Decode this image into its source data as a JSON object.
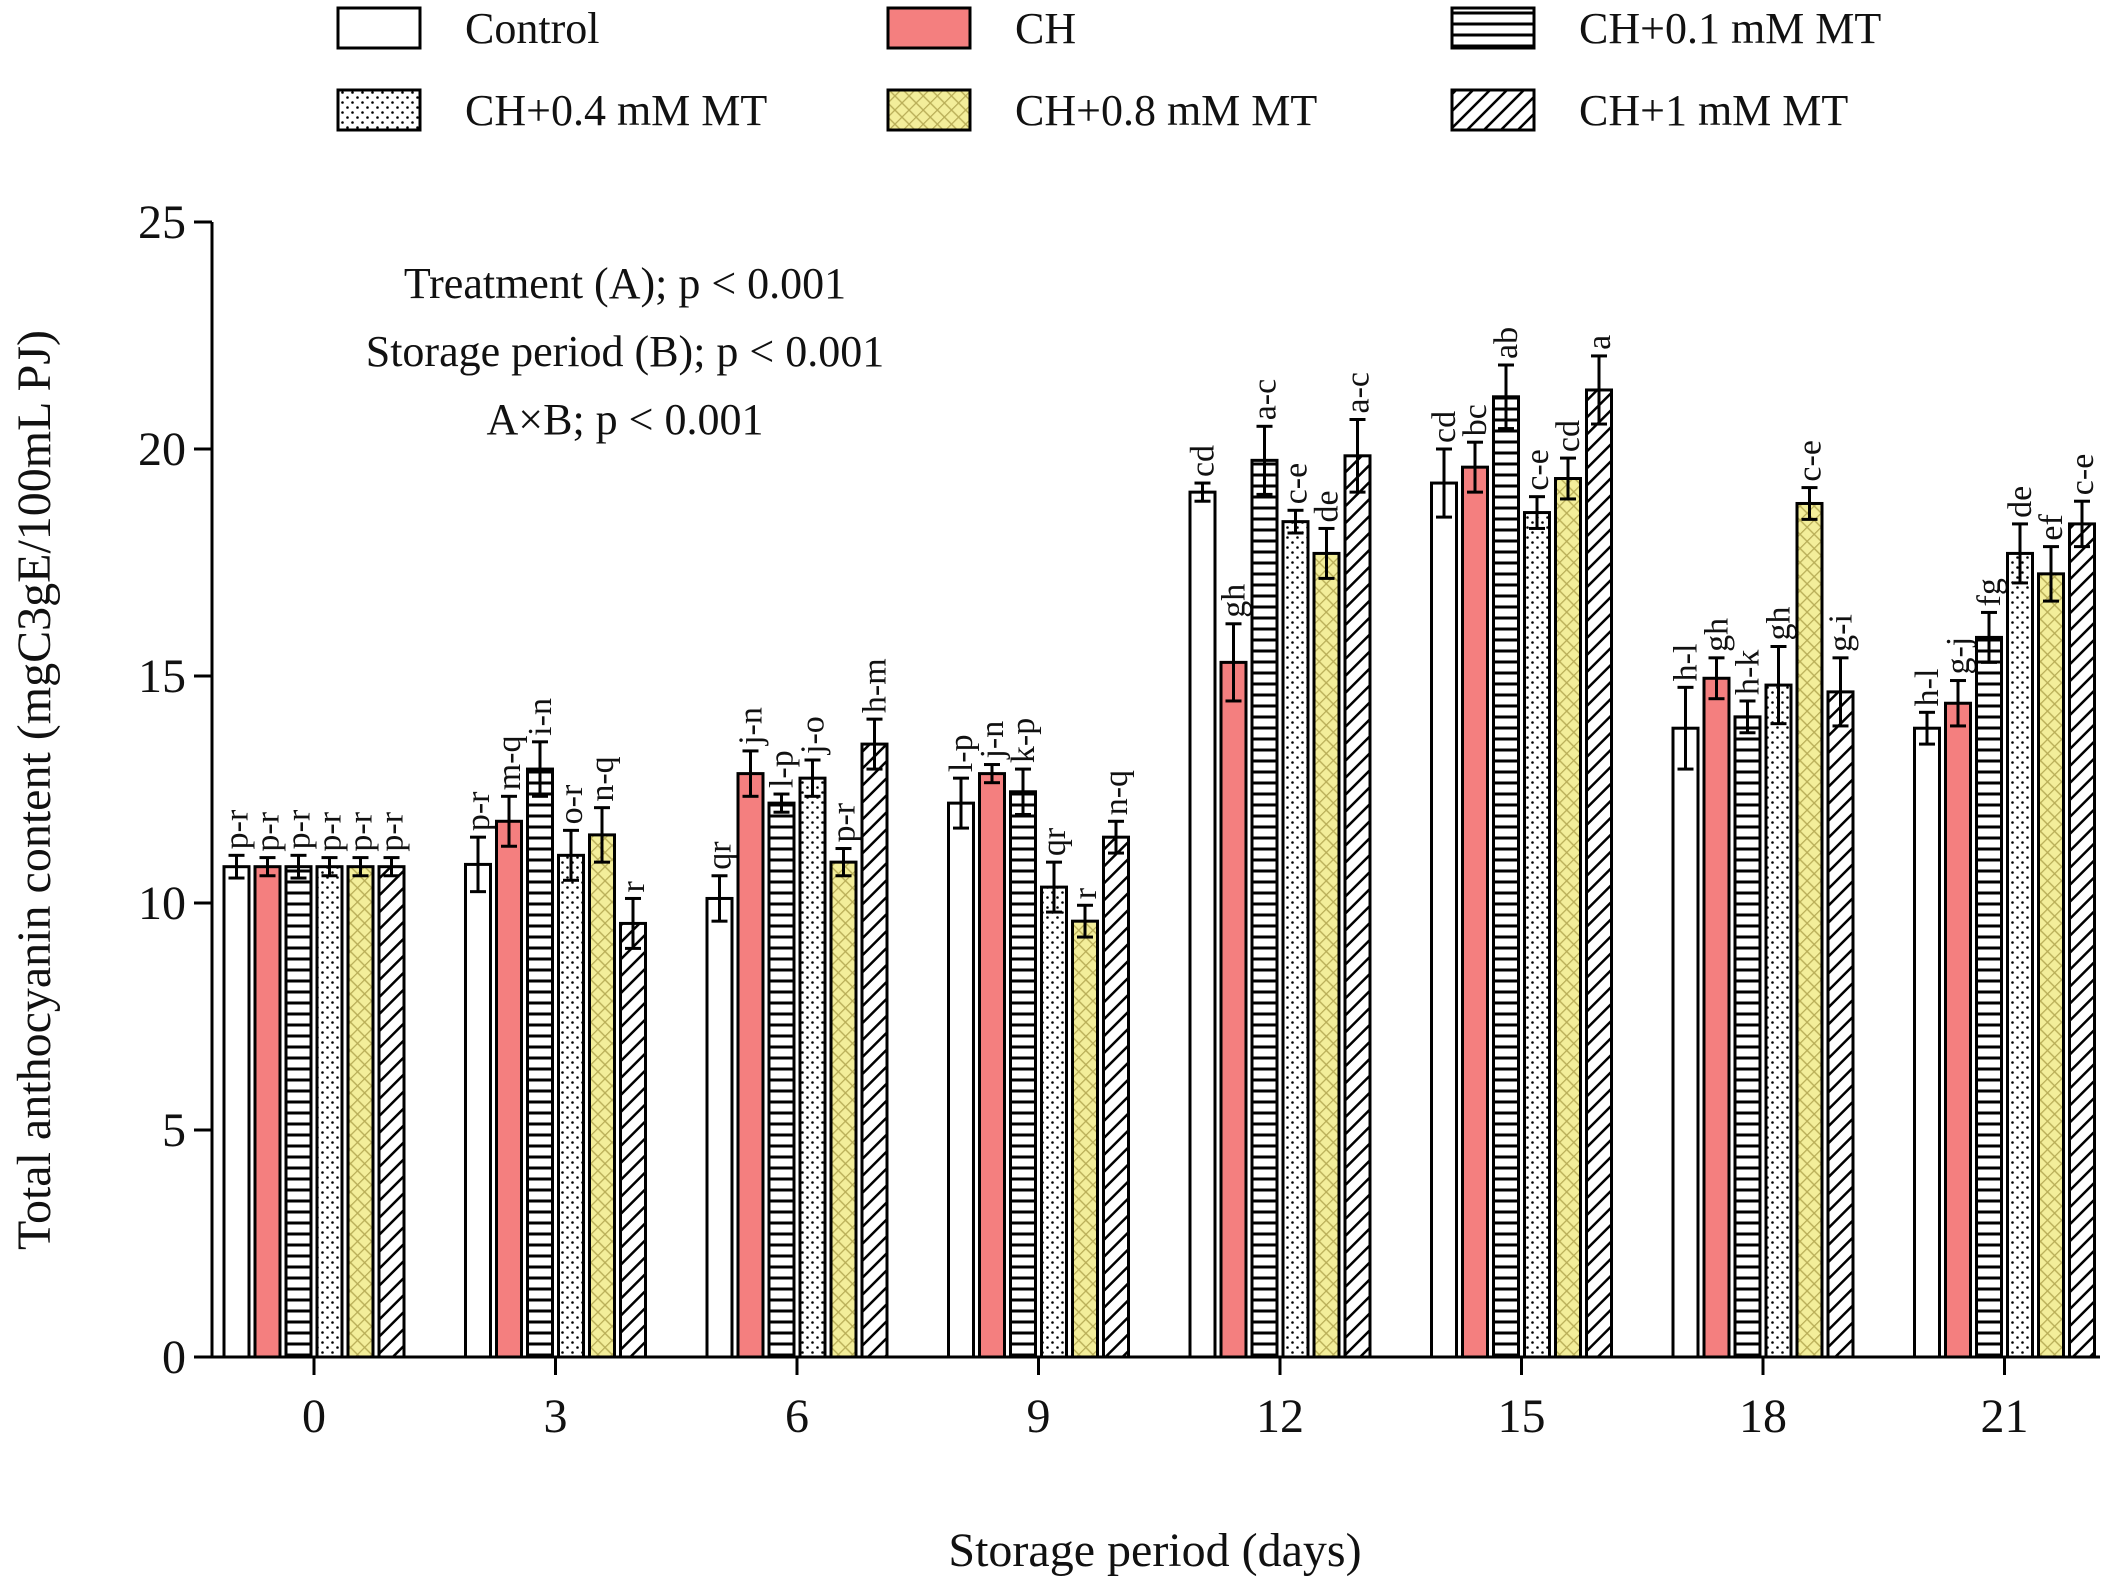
{
  "chart_data": {
    "type": "bar",
    "xlabel": "Storage period (days)",
    "ylabel": "Total anthocyanin content (mgC3gE/100mL PJ)",
    "ylim": [
      0,
      25
    ],
    "yticks": [
      "0",
      "5",
      "10",
      "15",
      "20",
      "25"
    ],
    "categories": [
      "0",
      "3",
      "6",
      "9",
      "12",
      "15",
      "18",
      "21"
    ],
    "legend_position": "top",
    "grid": false,
    "annotations": [
      "Treatment (A); p < 0.001",
      "Storage period (B); p < 0.001",
      "A×B; p < 0.001"
    ],
    "series": [
      {
        "name": "Control",
        "pattern": "open",
        "values": [
          10.8,
          10.85,
          10.1,
          12.2,
          19.05,
          19.25,
          13.85,
          13.85
        ],
        "errors": [
          0.25,
          0.6,
          0.5,
          0.55,
          0.2,
          0.75,
          0.9,
          0.35
        ],
        "letters": [
          "p-r",
          "p-r",
          "qr",
          "l-p",
          "cd",
          "cd",
          "h-l",
          "h-l"
        ]
      },
      {
        "name": "CH",
        "pattern": "solid",
        "color": "#f47f7f",
        "values": [
          10.8,
          11.8,
          12.85,
          12.85,
          15.3,
          19.6,
          14.95,
          14.4
        ],
        "errors": [
          0.2,
          0.55,
          0.5,
          0.2,
          0.85,
          0.55,
          0.45,
          0.5
        ],
        "letters": [
          "p-r",
          "m-q",
          "j-n",
          "j-n",
          "gh",
          "bc",
          "gh",
          "g-j"
        ]
      },
      {
        "name": "CH+0.1 mM MT",
        "pattern": "horizontal-stripes",
        "values": [
          10.8,
          12.95,
          12.2,
          12.45,
          19.75,
          21.15,
          14.1,
          15.85
        ],
        "errors": [
          0.25,
          0.6,
          0.2,
          0.5,
          0.75,
          0.7,
          0.35,
          0.55
        ],
        "letters": [
          "p-r",
          "i-n",
          "l-p",
          "k-p",
          "a-c",
          "ab",
          "h-k",
          "fg"
        ]
      },
      {
        "name": "CH+0.4 mM MT",
        "pattern": "dots",
        "values": [
          10.8,
          11.05,
          12.75,
          10.35,
          18.4,
          18.6,
          14.8,
          17.7
        ],
        "errors": [
          0.2,
          0.55,
          0.4,
          0.55,
          0.25,
          0.35,
          0.85,
          0.65
        ],
        "letters": [
          "p-r",
          "o-r",
          "j-o",
          "qr",
          "c-e",
          "c-e",
          "gh",
          "de"
        ]
      },
      {
        "name": "CH+0.8 mM MT",
        "pattern": "yellow-crosshatch",
        "color": "#f3ee9a",
        "values": [
          10.8,
          11.5,
          10.9,
          9.6,
          17.7,
          19.35,
          18.8,
          17.25
        ],
        "errors": [
          0.2,
          0.6,
          0.3,
          0.35,
          0.55,
          0.45,
          0.35,
          0.6
        ],
        "letters": [
          "p-r",
          "n-q",
          "p-r",
          "r",
          "de",
          "cd",
          "c-e",
          "ef"
        ]
      },
      {
        "name": "CH+1 mM MT",
        "pattern": "diagonal-stripes",
        "values": [
          10.8,
          9.55,
          13.5,
          11.45,
          19.85,
          21.3,
          14.65,
          18.35
        ],
        "errors": [
          0.2,
          0.55,
          0.55,
          0.35,
          0.8,
          0.75,
          0.75,
          0.5
        ],
        "letters": [
          "p-r",
          "r",
          "h-m",
          "n-q",
          "a-c",
          "a",
          "g-i",
          "c-e"
        ]
      }
    ]
  }
}
